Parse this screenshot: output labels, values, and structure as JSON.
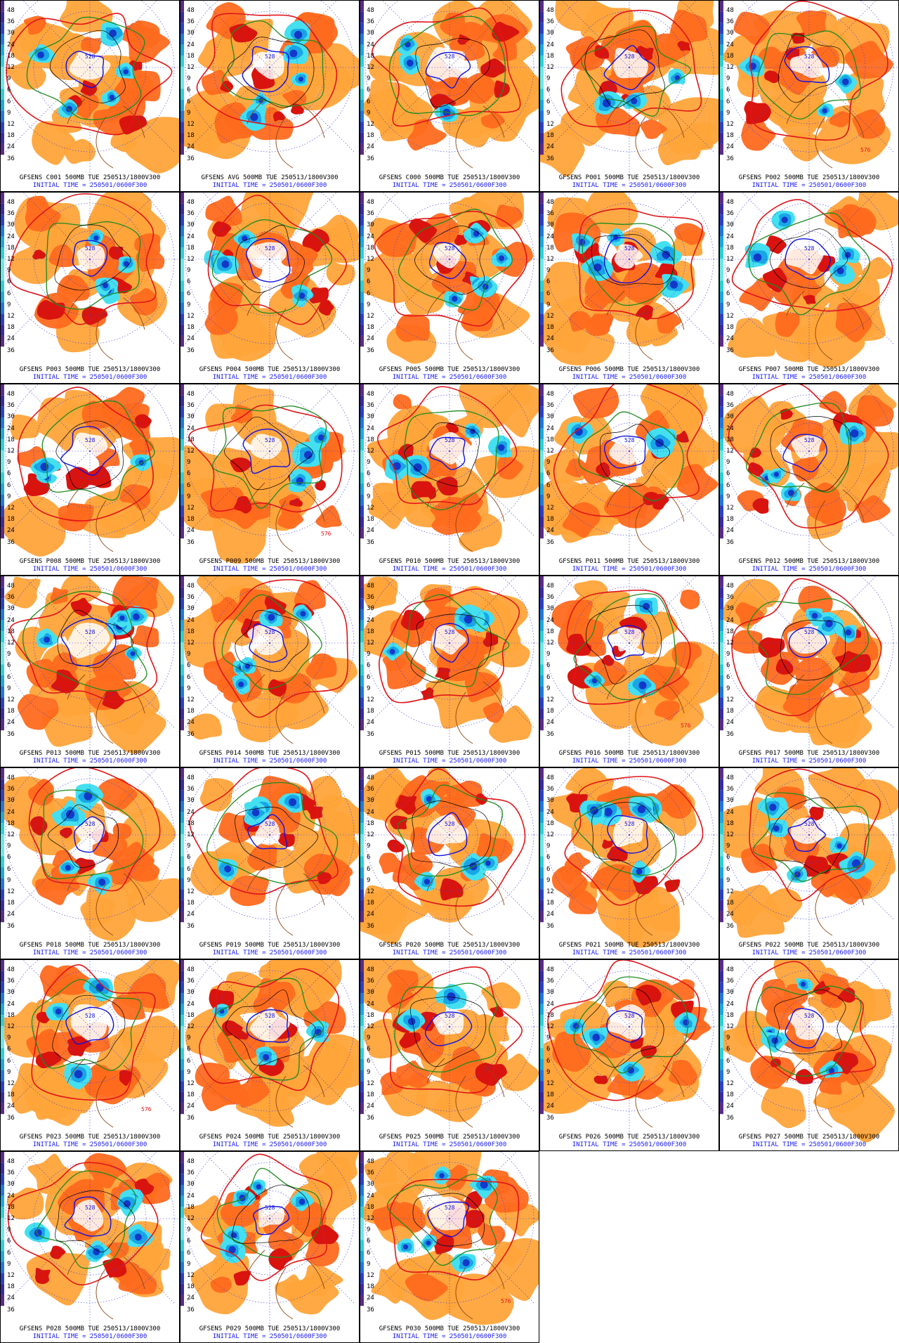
{
  "colorbar_labels": [
    "48",
    "36",
    "30",
    "24",
    "18",
    "12",
    "9",
    "6",
    "6",
    "9",
    "12",
    "18",
    "24",
    "36"
  ],
  "contour_label": "528",
  "contour_label_alt": "576",
  "initial_time": "INITIAL TIME = 250501/0600F300",
  "colors": {
    "warm_light": "#ffa43a",
    "warm_mid": "#ff6a1e",
    "warm_dark": "#d9140e",
    "cold_light": "#45e0f0",
    "cold_mid": "#18a6e6",
    "cold_dark": "#1238c8",
    "contour_red": "#e0141a",
    "contour_green": "#1f8a1f",
    "contour_blue": "#1010e0",
    "map_brown": "#8b4513",
    "grid_blue": "#3a3ae8"
  },
  "panels": [
    {
      "title": "GFSENS C001 500MB TUE 250513/1800V300"
    },
    {
      "title": "GFSENS AVG 500MB TUE 250513/1800V300"
    },
    {
      "title": "GFSENS C000 500MB TUE 250513/1800V300"
    },
    {
      "title": "GFSENS P001 500MB TUE 250513/1800V300"
    },
    {
      "title": "GFSENS P002 500MB TUE 250513/1800V300"
    },
    {
      "title": "GFSENS P003 500MB TUE 250513/1800V300"
    },
    {
      "title": "GFSENS P004 500MB TUE 250513/1800V300"
    },
    {
      "title": "GFSENS P005 500MB TUE 250513/1800V300"
    },
    {
      "title": "GFSENS P006 500MB TUE 250513/1800V300"
    },
    {
      "title": "GFSENS P007 500MB TUE 250513/1800V300"
    },
    {
      "title": "GFSENS P008 500MB TUE 250513/1800V300"
    },
    {
      "title": "GFSENS P009 500MB TUE 250513/1800V300"
    },
    {
      "title": "GFSENS P010 500MB TUE 250513/1800V300"
    },
    {
      "title": "GFSENS P011 500MB TUE 250513/1800V300"
    },
    {
      "title": "GFSENS P012 500MB TUE 250513/1800V300"
    },
    {
      "title": "GFSENS P013 500MB TUE 250513/1800V300"
    },
    {
      "title": "GFSENS P014 500MB TUE 250513/1800V300"
    },
    {
      "title": "GFSENS P015 500MB TUE 250513/1800V300"
    },
    {
      "title": "GFSENS P016 500MB TUE 250513/1800V300"
    },
    {
      "title": "GFSENS P017 500MB TUE 250513/1800V300"
    },
    {
      "title": "GFSENS P018 500MB TUE 250513/1800V300"
    },
    {
      "title": "GFSENS P019 500MB TUE 250513/1800V300"
    },
    {
      "title": "GFSENS P020 500MB TUE 250513/1800V300"
    },
    {
      "title": "GFSENS P021 500MB TUE 250513/1800V300"
    },
    {
      "title": "GFSENS P022 500MB TUE 250513/1800V300"
    },
    {
      "title": "GFSENS P023 500MB TUE 250513/1800V300"
    },
    {
      "title": "GFSENS P024 500MB TUE 250513/1800V300"
    },
    {
      "title": "GFSENS P025 500MB TUE 250513/1800V300"
    },
    {
      "title": "GFSENS P026 500MB TUE 250513/1800V300"
    },
    {
      "title": "GFSENS P027 500MB TUE 250513/1800V300"
    },
    {
      "title": "GFSENS P028 500MB TUE 250513/1800V300"
    },
    {
      "title": "GFSENS P029 500MB TUE 250513/1800V300"
    },
    {
      "title": "GFSENS P030 500MB TUE 250513/1800V300"
    }
  ]
}
